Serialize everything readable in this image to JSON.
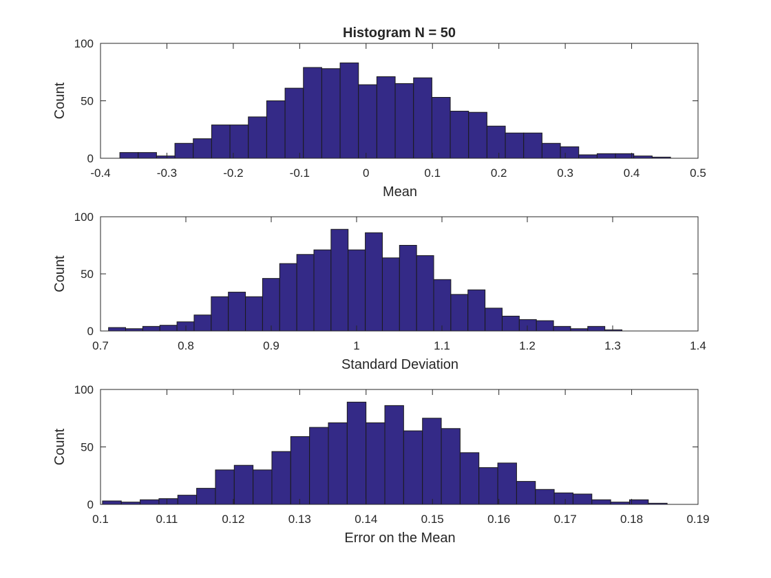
{
  "colors": {
    "bar_fill": "#342a87",
    "bar_edge": "#1a1a1a",
    "axes": "#262626",
    "background": "#ffffff"
  },
  "chart_data": [
    {
      "type": "bar",
      "title": "Histogram N = 50",
      "xlabel": "Mean",
      "ylabel": "Count",
      "xlim": [
        -0.4,
        0.5
      ],
      "ylim": [
        0,
        100
      ],
      "xticks": [
        -0.4,
        -0.3,
        -0.2,
        -0.1,
        0,
        0.1,
        0.2,
        0.3,
        0.4,
        0.5
      ],
      "xtick_labels": [
        "-0.4",
        "-0.3",
        "-0.2",
        "-0.1",
        "0",
        "0.1",
        "0.2",
        "0.3",
        "0.4",
        "0.5"
      ],
      "yticks": [
        0,
        50,
        100
      ],
      "ytick_labels": [
        "0",
        "50",
        "100"
      ],
      "bin_start": -0.3709,
      "bin_width": 0.02765,
      "values": [
        5,
        5,
        2,
        13,
        17,
        29,
        29,
        36,
        50,
        61,
        79,
        78,
        83,
        64,
        71,
        65,
        70,
        53,
        41,
        40,
        28,
        22,
        22,
        13,
        10,
        3,
        4,
        4,
        2,
        1
      ],
      "grid": false,
      "legend": "none"
    },
    {
      "type": "bar",
      "title": "",
      "xlabel": "Standard Deviation",
      "ylabel": "Count",
      "xlim": [
        0.7,
        1.4
      ],
      "ylim": [
        0,
        100
      ],
      "xticks": [
        0.7,
        0.8,
        0.9,
        1.0,
        1.1,
        1.2,
        1.3,
        1.4
      ],
      "xtick_labels": [
        "0.7",
        "0.8",
        "0.9",
        "1",
        "1.1",
        "1.2",
        "1.3",
        "1.4"
      ],
      "yticks": [
        0,
        50,
        100
      ],
      "ytick_labels": [
        "0",
        "50",
        "100"
      ],
      "bin_start": 0.7094,
      "bin_width": 0.02005,
      "values": [
        3,
        2,
        4,
        5,
        8,
        14,
        30,
        34,
        30,
        46,
        59,
        67,
        71,
        89,
        71,
        86,
        64,
        75,
        66,
        45,
        32,
        36,
        20,
        13,
        10,
        9,
        4,
        2,
        4,
        1
      ],
      "grid": false,
      "legend": "none"
    },
    {
      "type": "bar",
      "title": "",
      "xlabel": "Error on the Mean",
      "ylabel": "Count",
      "xlim": [
        0.1,
        0.19
      ],
      "ylim": [
        0,
        100
      ],
      "xticks": [
        0.1,
        0.11,
        0.12,
        0.13,
        0.14,
        0.15,
        0.16,
        0.17,
        0.18,
        0.19
      ],
      "xtick_labels": [
        "0.1",
        "0.11",
        "0.12",
        "0.13",
        "0.14",
        "0.15",
        "0.16",
        "0.17",
        "0.18",
        "0.19"
      ],
      "yticks": [
        0,
        50,
        100
      ],
      "ytick_labels": [
        "0",
        "50",
        "100"
      ],
      "bin_start": 0.1003,
      "bin_width": 0.002835,
      "values": [
        3,
        2,
        4,
        5,
        8,
        14,
        30,
        34,
        30,
        46,
        59,
        67,
        71,
        89,
        71,
        86,
        64,
        75,
        66,
        45,
        32,
        36,
        20,
        13,
        10,
        9,
        4,
        2,
        4,
        1
      ],
      "grid": false,
      "legend": "none"
    }
  ]
}
